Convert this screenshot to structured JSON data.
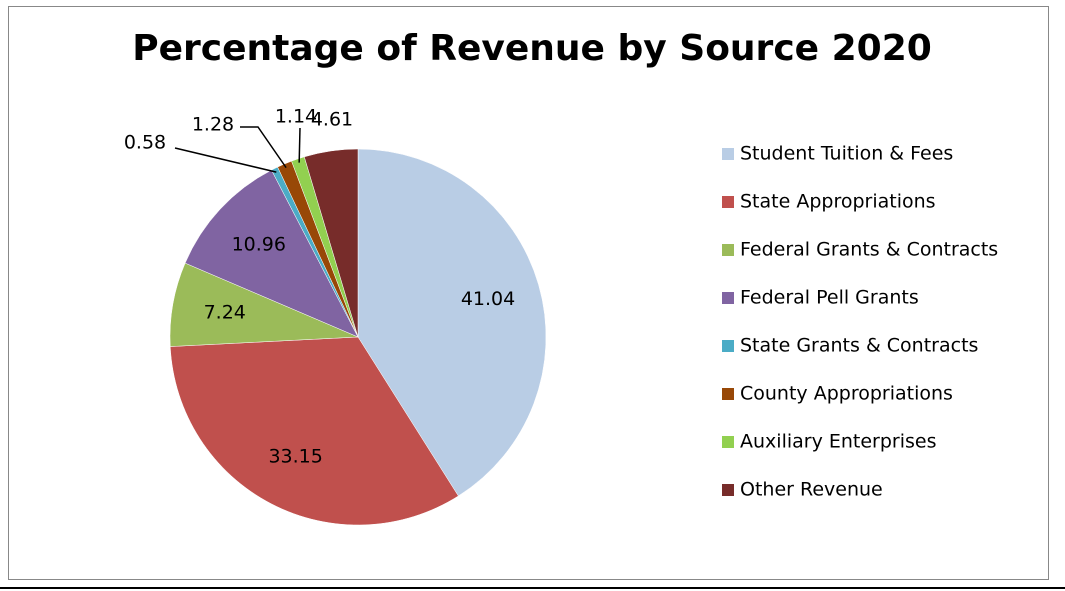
{
  "chart_data": {
    "type": "pie",
    "title": "Percentage of Revenue by Source 2020",
    "categories": [
      "Student Tuition & Fees",
      "State Appropriations",
      "Federal Grants & Contracts",
      "Federal Pell Grants",
      "State Grants & Contracts",
      "County Appropriations",
      "Auxiliary Enterprises",
      "Other Revenue"
    ],
    "values": [
      41.04,
      33.15,
      7.24,
      10.96,
      0.58,
      1.28,
      1.14,
      4.61
    ],
    "colors": [
      "#b9cde5",
      "#c0504d",
      "#9bbb59",
      "#8064a2",
      "#4bacc6",
      "#984807",
      "#92d050",
      "#772c2a"
    ],
    "legend": "right"
  }
}
